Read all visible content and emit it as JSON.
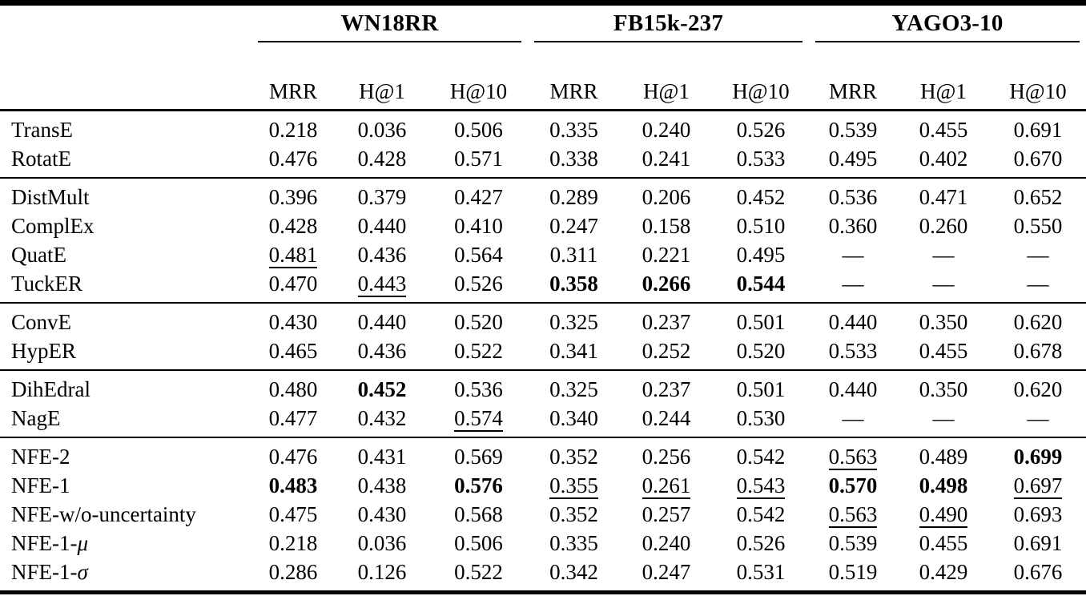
{
  "table": {
    "corner_label": "",
    "groups": [
      {
        "label": "WN18RR"
      },
      {
        "label": "FB15k-237"
      },
      {
        "label": "YAGO3-10"
      }
    ],
    "metric_headers": [
      "MRR",
      "H@1",
      "H@10"
    ],
    "dash": "—",
    "sections": [
      {
        "rows": [
          {
            "name": "TransE",
            "math": "",
            "cells": [
              [
                "0.218",
                ""
              ],
              [
                "0.036",
                ""
              ],
              [
                "0.506",
                ""
              ],
              [
                "0.335",
                ""
              ],
              [
                "0.240",
                ""
              ],
              [
                "0.526",
                ""
              ],
              [
                "0.539",
                ""
              ],
              [
                "0.455",
                ""
              ],
              [
                "0.691",
                ""
              ]
            ]
          },
          {
            "name": "RotatE",
            "math": "",
            "cells": [
              [
                "0.476",
                ""
              ],
              [
                "0.428",
                ""
              ],
              [
                "0.571",
                ""
              ],
              [
                "0.338",
                ""
              ],
              [
                "0.241",
                ""
              ],
              [
                "0.533",
                ""
              ],
              [
                "0.495",
                ""
              ],
              [
                "0.402",
                ""
              ],
              [
                "0.670",
                ""
              ]
            ]
          }
        ]
      },
      {
        "rows": [
          {
            "name": "DistMult",
            "math": "",
            "cells": [
              [
                "0.396",
                ""
              ],
              [
                "0.379",
                ""
              ],
              [
                "0.427",
                ""
              ],
              [
                "0.289",
                ""
              ],
              [
                "0.206",
                ""
              ],
              [
                "0.452",
                ""
              ],
              [
                "0.536",
                ""
              ],
              [
                "0.471",
                ""
              ],
              [
                "0.652",
                ""
              ]
            ]
          },
          {
            "name": "ComplEx",
            "math": "",
            "cells": [
              [
                "0.428",
                ""
              ],
              [
                "0.440",
                ""
              ],
              [
                "0.410",
                ""
              ],
              [
                "0.247",
                ""
              ],
              [
                "0.158",
                ""
              ],
              [
                "0.510",
                ""
              ],
              [
                "0.360",
                ""
              ],
              [
                "0.260",
                ""
              ],
              [
                "0.550",
                ""
              ]
            ]
          },
          {
            "name": "QuatE",
            "math": "",
            "cells": [
              [
                "0.481",
                "u"
              ],
              [
                "0.436",
                ""
              ],
              [
                "0.564",
                ""
              ],
              [
                "0.311",
                ""
              ],
              [
                "0.221",
                ""
              ],
              [
                "0.495",
                ""
              ],
              [
                "—",
                ""
              ],
              [
                "—",
                ""
              ],
              [
                "—",
                ""
              ]
            ]
          },
          {
            "name": "TuckER",
            "math": "",
            "cells": [
              [
                "0.470",
                ""
              ],
              [
                "0.443",
                "u"
              ],
              [
                "0.526",
                ""
              ],
              [
                "0.358",
                "b"
              ],
              [
                "0.266",
                "b"
              ],
              [
                "0.544",
                "b"
              ],
              [
                "—",
                ""
              ],
              [
                "—",
                ""
              ],
              [
                "—",
                ""
              ]
            ]
          }
        ]
      },
      {
        "rows": [
          {
            "name": "ConvE",
            "math": "",
            "cells": [
              [
                "0.430",
                ""
              ],
              [
                "0.440",
                ""
              ],
              [
                "0.520",
                ""
              ],
              [
                "0.325",
                ""
              ],
              [
                "0.237",
                ""
              ],
              [
                "0.501",
                ""
              ],
              [
                "0.440",
                ""
              ],
              [
                "0.350",
                ""
              ],
              [
                "0.620",
                ""
              ]
            ]
          },
          {
            "name": "HypER",
            "math": "",
            "cells": [
              [
                "0.465",
                ""
              ],
              [
                "0.436",
                ""
              ],
              [
                "0.522",
                ""
              ],
              [
                "0.341",
                ""
              ],
              [
                "0.252",
                ""
              ],
              [
                "0.520",
                ""
              ],
              [
                "0.533",
                ""
              ],
              [
                "0.455",
                ""
              ],
              [
                "0.678",
                ""
              ]
            ]
          }
        ]
      },
      {
        "rows": [
          {
            "name": "DihEdral",
            "math": "",
            "cells": [
              [
                "0.480",
                ""
              ],
              [
                "0.452",
                "b"
              ],
              [
                "0.536",
                ""
              ],
              [
                "0.325",
                ""
              ],
              [
                "0.237",
                ""
              ],
              [
                "0.501",
                ""
              ],
              [
                "0.440",
                ""
              ],
              [
                "0.350",
                ""
              ],
              [
                "0.620",
                ""
              ]
            ]
          },
          {
            "name": "NagE",
            "math": "",
            "cells": [
              [
                "0.477",
                ""
              ],
              [
                "0.432",
                ""
              ],
              [
                "0.574",
                "u"
              ],
              [
                "0.340",
                ""
              ],
              [
                "0.244",
                ""
              ],
              [
                "0.530",
                ""
              ],
              [
                "—",
                ""
              ],
              [
                "—",
                ""
              ],
              [
                "—",
                ""
              ]
            ]
          }
        ]
      },
      {
        "rows": [
          {
            "name": "NFE-2",
            "math": "",
            "cells": [
              [
                "0.476",
                ""
              ],
              [
                "0.431",
                ""
              ],
              [
                "0.569",
                ""
              ],
              [
                "0.352",
                ""
              ],
              [
                "0.256",
                ""
              ],
              [
                "0.542",
                ""
              ],
              [
                "0.563",
                "u"
              ],
              [
                "0.489",
                ""
              ],
              [
                "0.699",
                "b"
              ]
            ]
          },
          {
            "name": "NFE-1",
            "math": "",
            "cells": [
              [
                "0.483",
                "b"
              ],
              [
                "0.438",
                ""
              ],
              [
                "0.576",
                "b"
              ],
              [
                "0.355",
                "u"
              ],
              [
                "0.261",
                "u"
              ],
              [
                "0.543",
                "u"
              ],
              [
                "0.570",
                "b"
              ],
              [
                "0.498",
                "b"
              ],
              [
                "0.697",
                "u"
              ]
            ]
          },
          {
            "name": "NFE-w/o-uncertainty",
            "math": "",
            "cells": [
              [
                "0.475",
                ""
              ],
              [
                "0.430",
                ""
              ],
              [
                "0.568",
                ""
              ],
              [
                "0.352",
                ""
              ],
              [
                "0.257",
                ""
              ],
              [
                "0.542",
                ""
              ],
              [
                "0.563",
                "u"
              ],
              [
                "0.490",
                "u"
              ],
              [
                "0.693",
                ""
              ]
            ]
          },
          {
            "name": "NFE-1-",
            "math": "μ",
            "cells": [
              [
                "0.218",
                ""
              ],
              [
                "0.036",
                ""
              ],
              [
                "0.506",
                ""
              ],
              [
                "0.335",
                ""
              ],
              [
                "0.240",
                ""
              ],
              [
                "0.526",
                ""
              ],
              [
                "0.539",
                ""
              ],
              [
                "0.455",
                ""
              ],
              [
                "0.691",
                ""
              ]
            ]
          },
          {
            "name": "NFE-1-",
            "math": "σ",
            "cells": [
              [
                "0.286",
                ""
              ],
              [
                "0.126",
                ""
              ],
              [
                "0.522",
                ""
              ],
              [
                "0.342",
                ""
              ],
              [
                "0.247",
                ""
              ],
              [
                "0.531",
                ""
              ],
              [
                "0.519",
                ""
              ],
              [
                "0.429",
                ""
              ],
              [
                "0.676",
                ""
              ]
            ]
          }
        ]
      }
    ]
  }
}
